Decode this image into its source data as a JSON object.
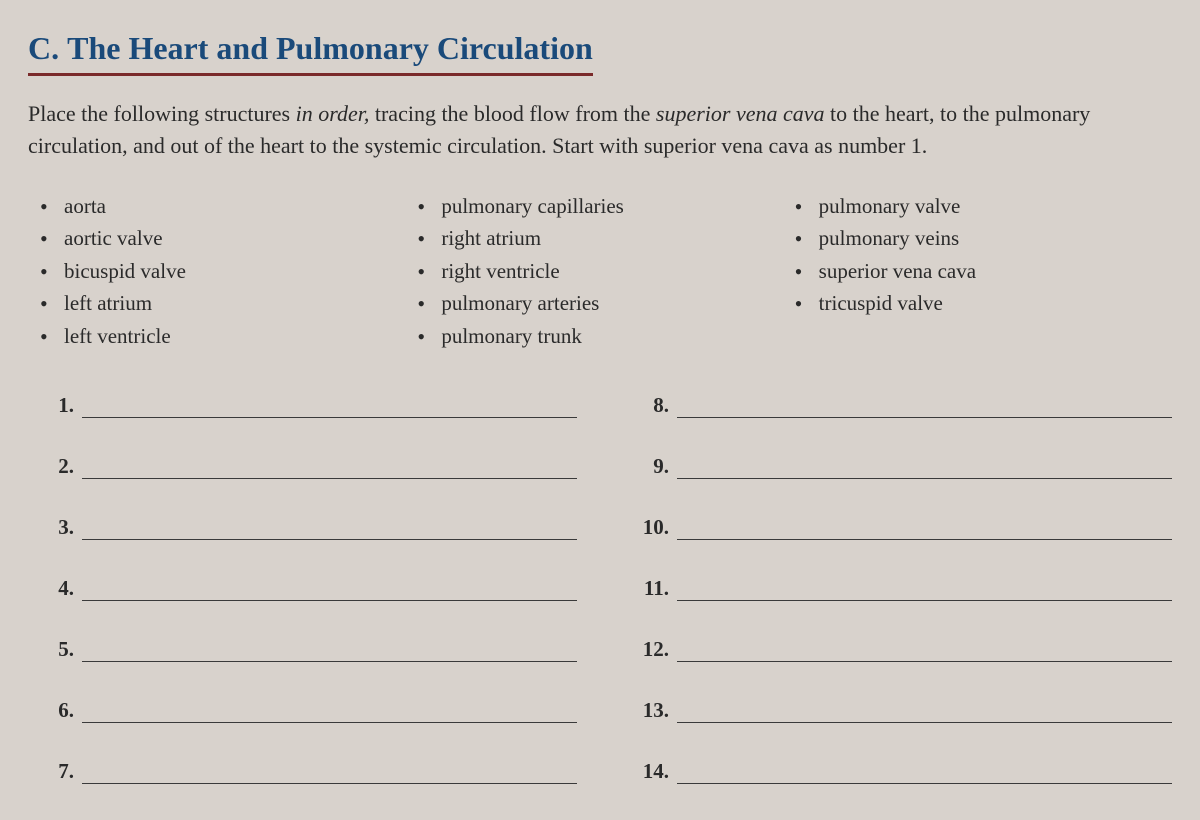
{
  "section": {
    "letter": "C.",
    "title": "The Heart and Pulmonary Circulation"
  },
  "instructions": {
    "pre": "Place the following structures ",
    "italic1": "in order,",
    "mid1": " tracing the blood flow from the ",
    "italic2": "superior vena cava",
    "mid2": " to the heart, to the pulmonary circulation, and out of the heart to the systemic circulation. Start with superior vena cava as number 1."
  },
  "terms": {
    "col1": [
      "aorta",
      "aortic valve",
      "bicuspid valve",
      "left atrium",
      "left ventricle"
    ],
    "col2": [
      "pulmonary capillaries",
      "right atrium",
      "right ventricle",
      "pulmonary arteries",
      "pulmonary trunk"
    ],
    "col3": [
      "pulmonary valve",
      "pulmonary veins",
      "superior vena cava",
      "tricuspid valve"
    ]
  },
  "answers": {
    "left": [
      "1.",
      "2.",
      "3.",
      "4.",
      "5.",
      "6.",
      "7."
    ],
    "right": [
      "8.",
      "9.",
      "10.",
      "11.",
      "12.",
      "13.",
      "14."
    ]
  },
  "colors": {
    "background": "#d8d2cc",
    "title": "#1a4a7a",
    "underline": "#7a2a2a",
    "text": "#2a2a2a",
    "line": "#3a3a3a"
  },
  "fonts": {
    "title_size": 32,
    "body_size": 22,
    "term_size": 21,
    "answer_size": 21
  }
}
